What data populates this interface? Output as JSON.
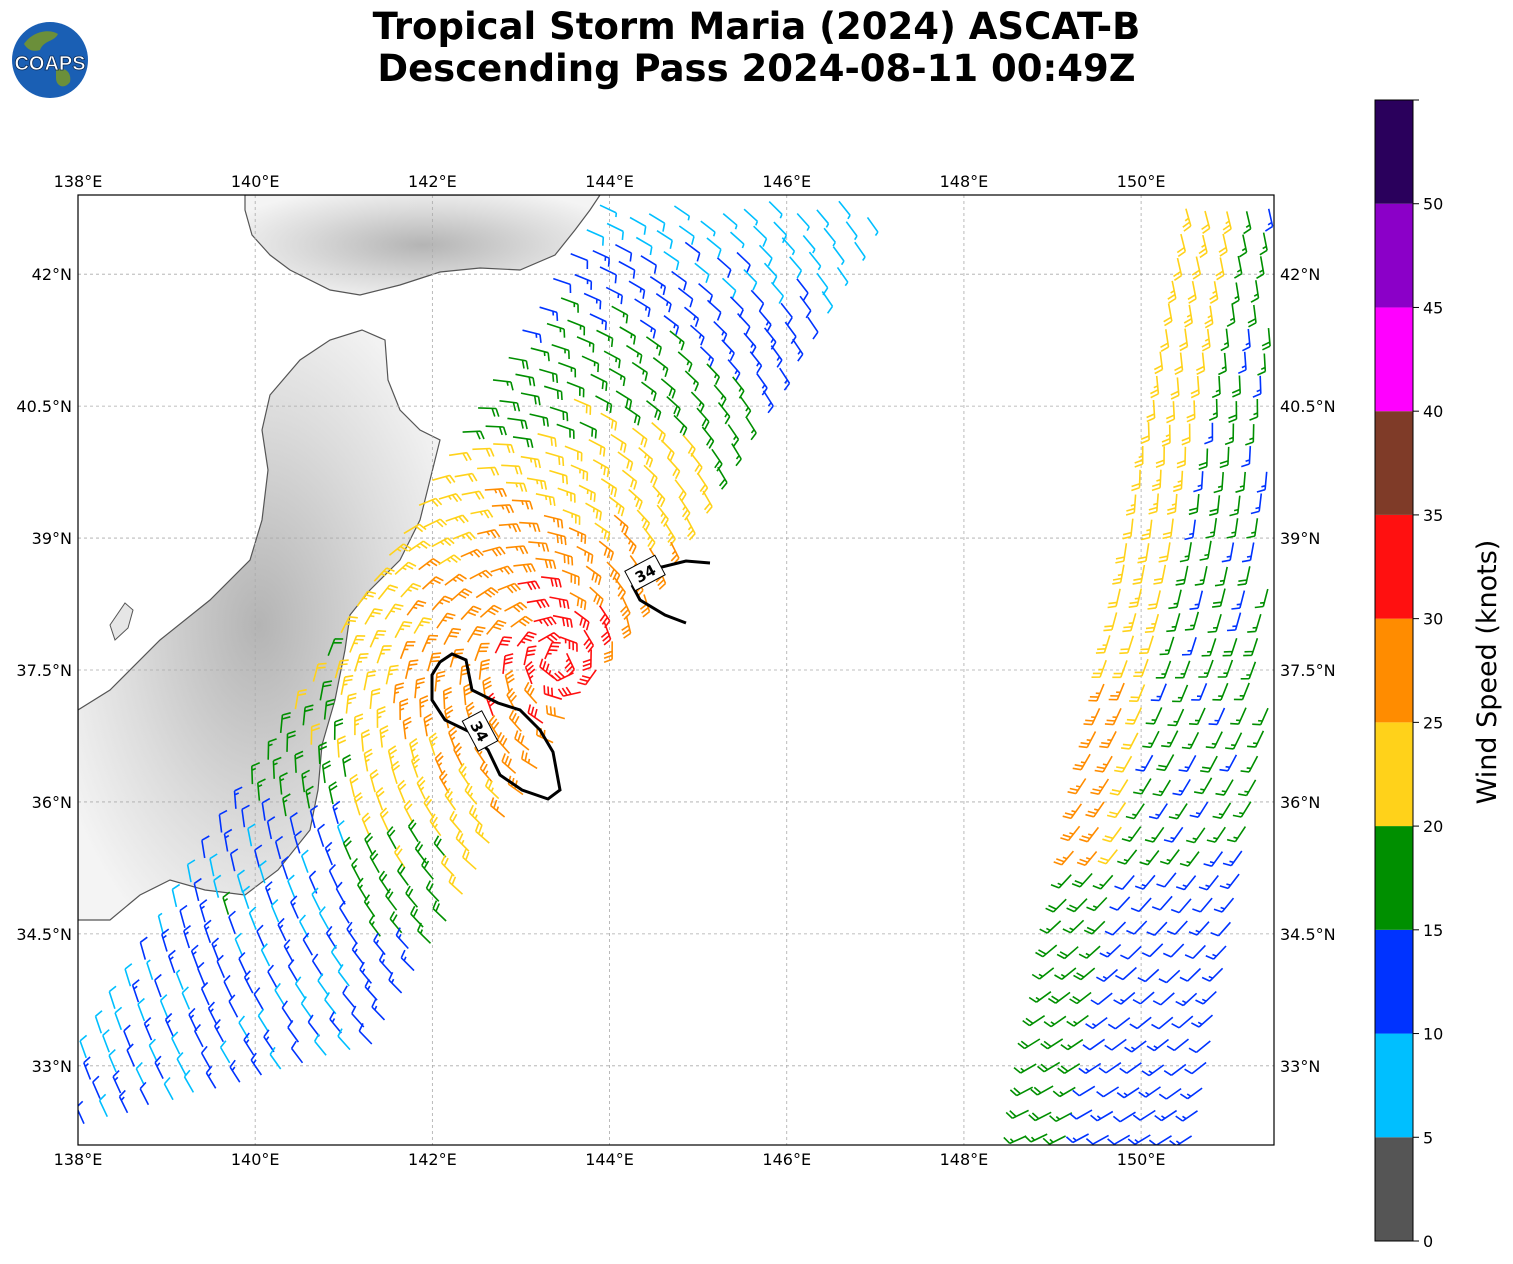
{
  "title": {
    "line1": "Tropical Storm Maria (2024) ASCAT-B",
    "line2": "Descending Pass 2024-08-11 00:49Z"
  },
  "logo": {
    "text": "COAPS",
    "ocean_color": "#1a5fb4",
    "land_color": "#6b8f3a"
  },
  "map": {
    "lon_range": [
      138,
      151.5
    ],
    "lat_range": [
      32.1,
      42.9
    ],
    "lon_ticks": [
      "138°E",
      "140°E",
      "142°E",
      "144°E",
      "146°E",
      "148°E",
      "150°E"
    ],
    "lat_ticks": [
      "42°N",
      "40.5°N",
      "39°N",
      "37.5°N",
      "36°N",
      "34.5°N",
      "33°N"
    ],
    "grid": true,
    "contour_label": "34",
    "contour_labels": [
      "34",
      "34"
    ]
  },
  "colorbar": {
    "label": "Wind Speed (knots)",
    "ticks": [
      "0",
      "5",
      "10",
      "15",
      "20",
      "25",
      "30",
      "35",
      "40",
      "45",
      "50"
    ],
    "colors": [
      "#555555",
      "#00bfff",
      "#0033ff",
      "#008f00",
      "#ffd21a",
      "#ff8c00",
      "#ff1010",
      "#7f3b28",
      "#ff00ff",
      "#8b00c8",
      "#2a005c"
    ],
    "range": [
      0,
      55
    ]
  }
}
